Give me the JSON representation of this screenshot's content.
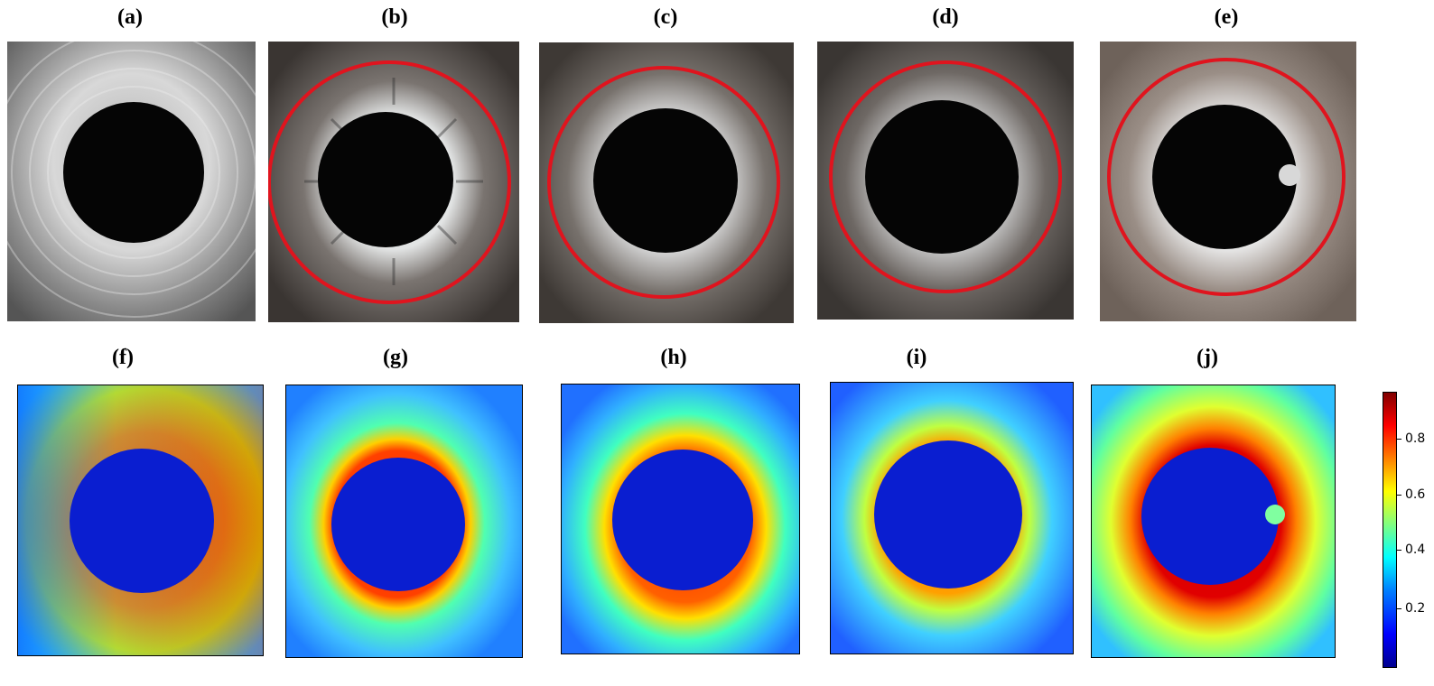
{
  "panels_top": [
    {
      "label": "(a)",
      "circle": false
    },
    {
      "label": "(b)",
      "circle": true
    },
    {
      "label": "(c)",
      "circle": true
    },
    {
      "label": "(d)",
      "circle": true
    },
    {
      "label": "(e)",
      "circle": true
    }
  ],
  "panels_bottom": [
    {
      "label": "(f)"
    },
    {
      "label": "(g)"
    },
    {
      "label": "(h)"
    },
    {
      "label": "(i)"
    },
    {
      "label": "(j)"
    }
  ],
  "colorbar": {
    "ticks": [
      "0.2",
      "0.4",
      "0.6",
      "0.8"
    ],
    "colormap": "jet",
    "range": [
      0,
      1
    ]
  },
  "colors": {
    "circle": "#e0141e",
    "hole": "#050505"
  }
}
